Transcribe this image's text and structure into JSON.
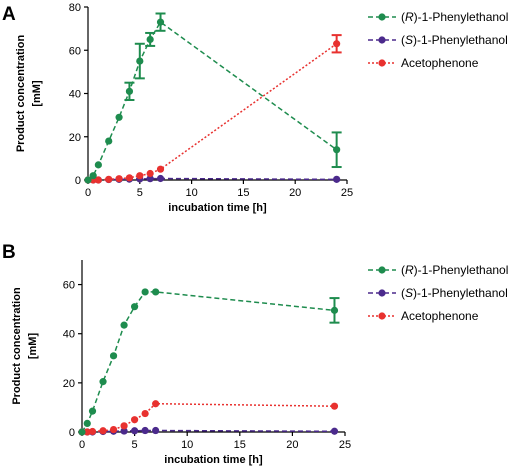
{
  "chart_data": [
    {
      "panel": "A",
      "type": "line",
      "xlabel": "incubation time [h]",
      "ylabel": "Product concentration [mM]",
      "xlim": [
        0,
        25
      ],
      "ylim": [
        0,
        80
      ],
      "xticks": [
        0,
        5,
        10,
        15,
        20,
        25
      ],
      "yticks": [
        0,
        20,
        40,
        60,
        80
      ],
      "legend_position": "top-right",
      "series": [
        {
          "name": "(R)-1-Phenylethanol",
          "color": "#1e8c4e",
          "linestyle": "dashed",
          "points": [
            {
              "x": 0,
              "y": 0
            },
            {
              "x": 0.5,
              "y": 2
            },
            {
              "x": 1,
              "y": 7
            },
            {
              "x": 2,
              "y": 18
            },
            {
              "x": 3,
              "y": 29
            },
            {
              "x": 4,
              "y": 41,
              "err": 4
            },
            {
              "x": 5,
              "y": 55,
              "err": 8
            },
            {
              "x": 6,
              "y": 65,
              "err": 3
            },
            {
              "x": 7,
              "y": 73,
              "err": 4
            },
            {
              "x": 24,
              "y": 14,
              "err": 8
            }
          ]
        },
        {
          "name": "(S)-1-Phenylethanol",
          "color": "#4b2a8c",
          "linestyle": "dashed",
          "points": [
            {
              "x": 0,
              "y": 0
            },
            {
              "x": 0.5,
              "y": 0
            },
            {
              "x": 1,
              "y": 0
            },
            {
              "x": 2,
              "y": 0.2
            },
            {
              "x": 3,
              "y": 0.3
            },
            {
              "x": 4,
              "y": 0.4
            },
            {
              "x": 5,
              "y": 0.5
            },
            {
              "x": 6,
              "y": 0.6
            },
            {
              "x": 7,
              "y": 0.7
            },
            {
              "x": 24,
              "y": 0.3
            }
          ]
        },
        {
          "name": "Acetophenone",
          "color": "#e8312f",
          "linestyle": "dotted",
          "points": [
            {
              "x": 0,
              "y": 0
            },
            {
              "x": 0.5,
              "y": 0
            },
            {
              "x": 1,
              "y": 0
            },
            {
              "x": 2,
              "y": 0.3
            },
            {
              "x": 3,
              "y": 0.6
            },
            {
              "x": 4,
              "y": 1
            },
            {
              "x": 5,
              "y": 2
            },
            {
              "x": 6,
              "y": 3
            },
            {
              "x": 7,
              "y": 5
            },
            {
              "x": 24,
              "y": 63,
              "err": 4
            }
          ]
        }
      ]
    },
    {
      "panel": "B",
      "type": "line",
      "xlabel": "incubation time [h]",
      "ylabel": "Product concentration [mM]",
      "xlim": [
        0,
        25
      ],
      "ylim": [
        0,
        70
      ],
      "xticks": [
        0,
        5,
        10,
        15,
        20,
        25
      ],
      "yticks": [
        0,
        20,
        40,
        60
      ],
      "legend_position": "top-right",
      "series": [
        {
          "name": "(R)-1-Phenylethanol",
          "color": "#1e8c4e",
          "linestyle": "dashed",
          "points": [
            {
              "x": 0,
              "y": 0
            },
            {
              "x": 0.5,
              "y": 3.5
            },
            {
              "x": 1,
              "y": 8.5
            },
            {
              "x": 2,
              "y": 20.5
            },
            {
              "x": 3,
              "y": 31
            },
            {
              "x": 4,
              "y": 43.5
            },
            {
              "x": 5,
              "y": 51
            },
            {
              "x": 6,
              "y": 57
            },
            {
              "x": 7,
              "y": 57
            },
            {
              "x": 24,
              "y": 49.5,
              "err": 5
            }
          ]
        },
        {
          "name": "(S)-1-Phenylethanol",
          "color": "#4b2a8c",
          "linestyle": "dashed",
          "points": [
            {
              "x": 0,
              "y": 0
            },
            {
              "x": 0.5,
              "y": 0
            },
            {
              "x": 1,
              "y": 0
            },
            {
              "x": 2,
              "y": 0.2
            },
            {
              "x": 3,
              "y": 0.3
            },
            {
              "x": 4,
              "y": 0.4
            },
            {
              "x": 5,
              "y": 0.5
            },
            {
              "x": 6,
              "y": 0.6
            },
            {
              "x": 7,
              "y": 0.6
            },
            {
              "x": 24,
              "y": 0.3
            }
          ]
        },
        {
          "name": "Acetophenone",
          "color": "#e8312f",
          "linestyle": "dotted",
          "points": [
            {
              "x": 0,
              "y": 0
            },
            {
              "x": 0.5,
              "y": 0
            },
            {
              "x": 1,
              "y": 0.2
            },
            {
              "x": 2,
              "y": 0.5
            },
            {
              "x": 3,
              "y": 1
            },
            {
              "x": 4,
              "y": 2.5
            },
            {
              "x": 5,
              "y": 5
            },
            {
              "x": 6,
              "y": 7.5
            },
            {
              "x": 7,
              "y": 11.5
            },
            {
              "x": 24,
              "y": 10.5
            }
          ]
        }
      ]
    }
  ]
}
